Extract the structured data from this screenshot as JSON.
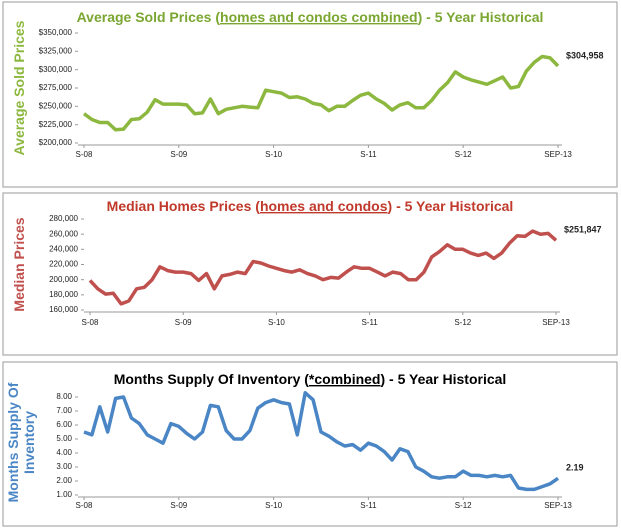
{
  "chart_data": [
    {
      "type": "line",
      "title": [
        "Average Sold Prices (",
        "homes and condos combined",
        ") - 5 Year Historical"
      ],
      "title_color": "#7aa631",
      "ylabel": [
        "Average Sold Prices"
      ],
      "categories": [
        "S-08",
        null,
        null,
        null,
        null,
        null,
        null,
        null,
        null,
        null,
        null,
        null,
        "S-09",
        null,
        null,
        null,
        null,
        null,
        null,
        null,
        null,
        null,
        null,
        null,
        "S-10",
        null,
        null,
        null,
        null,
        null,
        null,
        null,
        null,
        null,
        null,
        null,
        "S-11",
        null,
        null,
        null,
        null,
        null,
        null,
        null,
        null,
        null,
        null,
        null,
        "S-12",
        null,
        null,
        null,
        null,
        null,
        null,
        null,
        null,
        null,
        null,
        null,
        "SEP-13"
      ],
      "series": [
        {
          "color": "#8db83f",
          "values": [
            240000,
            232000,
            228000,
            228000,
            218000,
            219000,
            232000,
            233000,
            242000,
            259000,
            253000,
            253000,
            253000,
            252000,
            240000,
            241000,
            260000,
            240000,
            246000,
            248000,
            250000,
            249000,
            248000,
            272000,
            270000,
            268000,
            262000,
            263000,
            260000,
            254000,
            252000,
            244000,
            250000,
            250000,
            258000,
            265000,
            268000,
            260000,
            254000,
            245000,
            252000,
            255000,
            248000,
            248000,
            258000,
            272000,
            282000,
            297000,
            290000,
            286000,
            283000,
            280000,
            285000,
            290000,
            275000,
            277000,
            298000,
            310000,
            318000,
            316000,
            304958
          ],
          "value_labels": [
            null,
            null,
            null,
            null,
            null,
            null,
            null,
            null,
            null,
            null,
            null,
            null,
            null,
            null,
            null,
            null,
            null,
            null,
            null,
            null,
            null,
            null,
            null,
            null,
            null,
            null,
            null,
            null,
            null,
            null,
            null,
            null,
            null,
            null,
            null,
            null,
            null,
            null,
            null,
            null,
            null,
            null,
            null,
            null,
            null,
            null,
            null,
            null,
            null,
            null,
            null,
            null,
            null,
            null,
            null,
            null,
            null,
            null,
            null,
            null,
            "$304,958"
          ]
        }
      ],
      "ylim": [
        200000,
        350000
      ],
      "yticks": [
        {
          "value": 200000,
          "label": "$200,000"
        },
        {
          "value": 225000,
          "label": "$225,000"
        },
        {
          "value": 250000,
          "label": "$250,000"
        },
        {
          "value": 275000,
          "label": "$275,000"
        },
        {
          "value": 300000,
          "label": "$300,000"
        },
        {
          "value": 325000,
          "label": "$325,000"
        },
        {
          "value": 350000,
          "label": "$350,000"
        }
      ],
      "grid": false
    },
    {
      "type": "line",
      "title": [
        "Median Homes Prices (",
        "homes and condos",
        ") - 5 Year Historical"
      ],
      "title_color": "#c0392b",
      "ylabel": [
        "Median Prices"
      ],
      "categories": [
        "S-08",
        null,
        null,
        null,
        null,
        null,
        null,
        null,
        null,
        null,
        null,
        null,
        "S-09",
        null,
        null,
        null,
        null,
        null,
        null,
        null,
        null,
        null,
        null,
        null,
        "S-10",
        null,
        null,
        null,
        null,
        null,
        null,
        null,
        null,
        null,
        null,
        null,
        "S-11",
        null,
        null,
        null,
        null,
        null,
        null,
        null,
        null,
        null,
        null,
        null,
        "S-12",
        null,
        null,
        null,
        null,
        null,
        null,
        null,
        null,
        null,
        null,
        null,
        "SEP-13"
      ],
      "series": [
        {
          "color": "#c0504d",
          "values": [
            199000,
            188000,
            181000,
            182000,
            168000,
            172000,
            188000,
            190000,
            200000,
            217000,
            212000,
            210000,
            210000,
            208000,
            199000,
            208000,
            188000,
            205000,
            207000,
            210000,
            208000,
            224000,
            222000,
            218000,
            215000,
            212000,
            210000,
            213000,
            208000,
            205000,
            200000,
            203000,
            202000,
            210000,
            217000,
            215000,
            215000,
            210000,
            205000,
            210000,
            208000,
            200000,
            200000,
            210000,
            230000,
            237000,
            246000,
            240000,
            240000,
            235000,
            232000,
            235000,
            228000,
            235000,
            248000,
            258000,
            257000,
            264000,
            260000,
            261000,
            251847
          ],
          "value_labels": [
            null,
            null,
            null,
            null,
            null,
            null,
            null,
            null,
            null,
            null,
            null,
            null,
            null,
            null,
            null,
            null,
            null,
            null,
            null,
            null,
            null,
            null,
            null,
            null,
            null,
            null,
            null,
            null,
            null,
            null,
            null,
            null,
            null,
            null,
            null,
            null,
            null,
            null,
            null,
            null,
            null,
            null,
            null,
            null,
            null,
            null,
            null,
            null,
            null,
            null,
            null,
            null,
            null,
            null,
            null,
            null,
            null,
            null,
            null,
            null,
            "$251,847"
          ]
        }
      ],
      "ylim": [
        160000,
        280000
      ],
      "yticks": [
        {
          "value": 160000,
          "label": "160,000"
        },
        {
          "value": 180000,
          "label": "180,000"
        },
        {
          "value": 200000,
          "label": "200,000"
        },
        {
          "value": 220000,
          "label": "220,000"
        },
        {
          "value": 240000,
          "label": "240,000"
        },
        {
          "value": 260000,
          "label": "260,000"
        },
        {
          "value": 280000,
          "label": "280,000"
        }
      ],
      "grid": false
    },
    {
      "type": "line",
      "title": [
        "Months Supply Of Inventory (",
        "*combined",
        ") - 5 Year Historical"
      ],
      "title_color": "#000000",
      "ylabel": [
        "Months Supply Of",
        "Inventory"
      ],
      "categories": [
        "S-08",
        null,
        null,
        null,
        null,
        null,
        null,
        null,
        null,
        null,
        null,
        null,
        "S-09",
        null,
        null,
        null,
        null,
        null,
        null,
        null,
        null,
        null,
        null,
        null,
        "S-10",
        null,
        null,
        null,
        null,
        null,
        null,
        null,
        null,
        null,
        null,
        null,
        "S-11",
        null,
        null,
        null,
        null,
        null,
        null,
        null,
        null,
        null,
        null,
        null,
        "S-12",
        null,
        null,
        null,
        null,
        null,
        null,
        null,
        null,
        null,
        null,
        null,
        "SEP-13"
      ],
      "series": [
        {
          "color": "#4a86c5",
          "values": [
            5.5,
            5.3,
            7.3,
            5.5,
            7.9,
            8.0,
            6.5,
            6.1,
            5.3,
            5.0,
            4.7,
            6.1,
            5.9,
            5.4,
            5.0,
            5.5,
            7.4,
            7.3,
            5.6,
            5.0,
            5.0,
            5.6,
            7.2,
            7.6,
            7.8,
            7.6,
            7.5,
            5.3,
            8.3,
            7.8,
            5.5,
            5.2,
            4.8,
            4.5,
            4.6,
            4.2,
            4.7,
            4.5,
            4.1,
            3.5,
            4.3,
            4.1,
            3.0,
            2.7,
            2.3,
            2.2,
            2.3,
            2.3,
            2.7,
            2.4,
            2.4,
            2.3,
            2.4,
            2.3,
            2.4,
            1.5,
            1.4,
            1.4,
            1.6,
            1.8,
            2.19
          ],
          "value_labels": [
            null,
            null,
            null,
            null,
            null,
            null,
            null,
            null,
            null,
            null,
            null,
            null,
            null,
            null,
            null,
            null,
            null,
            null,
            null,
            null,
            null,
            null,
            null,
            null,
            null,
            null,
            null,
            null,
            null,
            null,
            null,
            null,
            null,
            null,
            null,
            null,
            null,
            null,
            null,
            null,
            null,
            null,
            null,
            null,
            null,
            null,
            null,
            null,
            null,
            null,
            null,
            null,
            null,
            null,
            null,
            null,
            null,
            null,
            null,
            null,
            "2.19"
          ]
        }
      ],
      "ylim": [
        1,
        8.5
      ],
      "yticks": [
        {
          "value": 1,
          "label": "1.00"
        },
        {
          "value": 2,
          "label": "2.00"
        },
        {
          "value": 3,
          "label": "3.00"
        },
        {
          "value": 4,
          "label": "4.00"
        },
        {
          "value": 5,
          "label": "5.00"
        },
        {
          "value": 6,
          "label": "6.00"
        },
        {
          "value": 7,
          "label": "7.00"
        },
        {
          "value": 8,
          "label": "8.00"
        }
      ],
      "grid": false
    }
  ]
}
